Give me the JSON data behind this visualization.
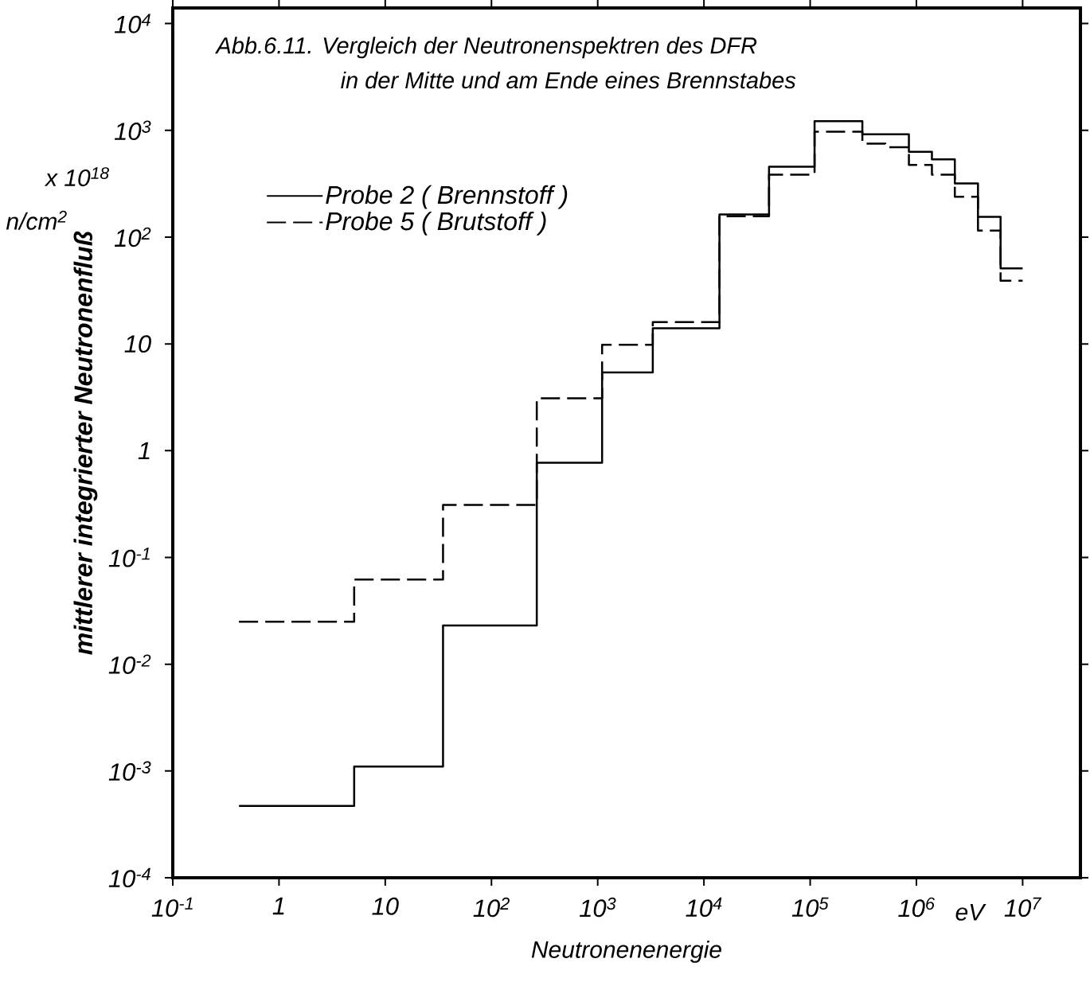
{
  "chart_data": {
    "type": "step",
    "title": "Abb.6.11. Vergleich der Neutronenspektren des DFR",
    "subtitle": "in der Mitte und am Ende eines Brennstabes",
    "xlabel": "Neutronenenergie",
    "ylabel": "mittlerer integrierter Neutronenfluß",
    "annotations": [
      "eV",
      "x 10$^{18}$",
      "n/cm$^{2}$"
    ],
    "x": [
      0.42,
      5.1,
      35,
      267,
      1100,
      3300,
      14000,
      41000,
      110000,
      310000,
      510000,
      850000,
      1400000,
      2300000,
      3800000,
      6200000,
      10000000
    ],
    "series": [
      {
        "name": "Probe 2 ( Brennstoff )",
        "color": "#000000",
        "line_style": "solid",
        "values": [
          0.00047,
          0.0011,
          0.023,
          0.77,
          5.4,
          14,
          163,
          457,
          1220,
          920,
          920,
          630,
          535,
          318,
          155,
          51,
          51
        ]
      },
      {
        "name": "Probe 5 ( Brutstoff   )",
        "color": "#000000",
        "line_style": "dashed",
        "values": [
          0.025,
          0.062,
          0.31,
          3.1,
          9.8,
          16,
          157,
          384,
          970,
          750,
          695,
          475,
          384,
          239,
          115,
          39,
          39
        ]
      }
    ],
    "log": "xy",
    "xlim": [
      0.1,
      35000000
    ],
    "ylim": [
      0.0001,
      14000
    ],
    "xticks": [
      {
        "value": 0.1,
        "label": "10$^{-1}$"
      },
      1,
      10,
      {
        "value": 100,
        "label": "10$^{2}$"
      },
      {
        "value": 1000,
        "label": "10$^{3}$"
      },
      {
        "value": 10000,
        "label": "10$^{4}$"
      },
      {
        "value": 100000,
        "label": "10$^{5}$"
      },
      {
        "value": 1000000,
        "label": "10$^{6}$"
      },
      {
        "value": 10000000,
        "label": "10$^{7}$"
      }
    ],
    "yticks": [
      {
        "value": 0.0001,
        "label": "10$^{-4}$"
      },
      {
        "value": 0.001,
        "label": "10$^{-3}$"
      },
      {
        "value": 0.01,
        "label": "10$^{-2}$"
      },
      {
        "value": 0.1,
        "label": "10$^{-1}$"
      },
      1,
      10,
      {
        "value": 100,
        "label": "10$^{2}$"
      },
      {
        "value": 1000,
        "label": "10$^{3}$"
      },
      {
        "value": 10000,
        "label": "10$^{4}$"
      }
    ],
    "legend": "top left",
    "grid": false
  }
}
